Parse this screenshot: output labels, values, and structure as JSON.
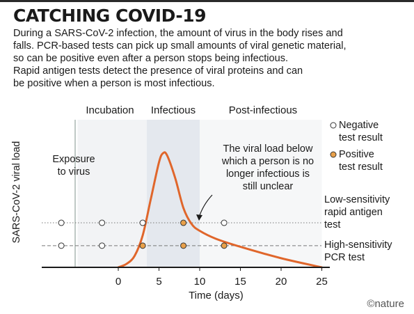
{
  "header": {
    "title": "CATCHING COVID-19",
    "intro_lines": [
      "During a SARS-CoV-2 infection, the amount of virus in the body rises and",
      "falls. PCR-based tests can pick up small amounts of viral genetic material,",
      "so can be positive even after a person stops being infectious.",
      "Rapid antigen tests detect the presence of viral proteins and can",
      "be positive when a person is most infectious."
    ]
  },
  "chart_data": {
    "type": "line",
    "xlabel": "Time (days)",
    "ylabel": "SARS-CoV-2 viral load",
    "xticks": [
      0,
      5,
      10,
      15,
      20,
      25
    ],
    "xlim": [
      -8,
      25
    ],
    "phases": [
      {
        "label": "Incubation",
        "start": -5,
        "end": 3.5
      },
      {
        "label": "Infectious",
        "start": 3.5,
        "end": 10
      },
      {
        "label": "Post-infectious",
        "start": 10,
        "end": 25
      }
    ],
    "exposure_label_lines": [
      "Exposure",
      "to virus"
    ],
    "annotation_lines": [
      "The viral load below",
      "which a person is no",
      "longer infectious is",
      "still unclear"
    ],
    "viral_load_curve": [
      [
        0,
        0
      ],
      [
        1,
        3
      ],
      [
        2,
        10
      ],
      [
        3,
        28
      ],
      [
        4,
        60
      ],
      [
        5,
        92
      ],
      [
        5.5,
        100
      ],
      [
        6,
        98
      ],
      [
        7,
        78
      ],
      [
        8,
        52
      ],
      [
        9,
        38
      ],
      [
        10,
        32
      ],
      [
        12,
        25
      ],
      [
        15,
        18
      ],
      [
        20,
        8
      ],
      [
        25,
        0
      ]
    ],
    "thresholds": [
      {
        "name": "Low-sensitivity rapid antigen test",
        "label_lines": [
          "Low-sensitivity",
          "rapid antigen",
          "test"
        ],
        "level": 39,
        "results": [
          {
            "day": -7,
            "positive": false
          },
          {
            "day": -2,
            "positive": false
          },
          {
            "day": 3,
            "positive": false
          },
          {
            "day": 8,
            "positive": true
          },
          {
            "day": 13,
            "positive": false
          }
        ]
      },
      {
        "name": "High-sensitivity PCR test",
        "label_lines": [
          "High-sensitivity",
          "PCR test"
        ],
        "level": 19,
        "results": [
          {
            "day": -7,
            "positive": false
          },
          {
            "day": -2,
            "positive": false
          },
          {
            "day": 3,
            "positive": true
          },
          {
            "day": 8,
            "positive": true
          },
          {
            "day": 13,
            "positive": true
          }
        ]
      }
    ],
    "legend": [
      {
        "label_lines": [
          "Negative",
          "test result"
        ],
        "positive": false
      },
      {
        "label_lines": [
          "Positive",
          "test result"
        ],
        "positive": true
      }
    ],
    "colors": {
      "curve": "#e0662b",
      "positive_fill": "#e8a04a",
      "incubation_band": "#f2f3f5",
      "infectious_band": "#e4e8ee",
      "post_band": "#f6f7f8",
      "exposure_line": "#a9b6b2",
      "axis": "#1a1a1a",
      "dotted": "#777777"
    }
  },
  "footer": {
    "credit": "©nature"
  }
}
